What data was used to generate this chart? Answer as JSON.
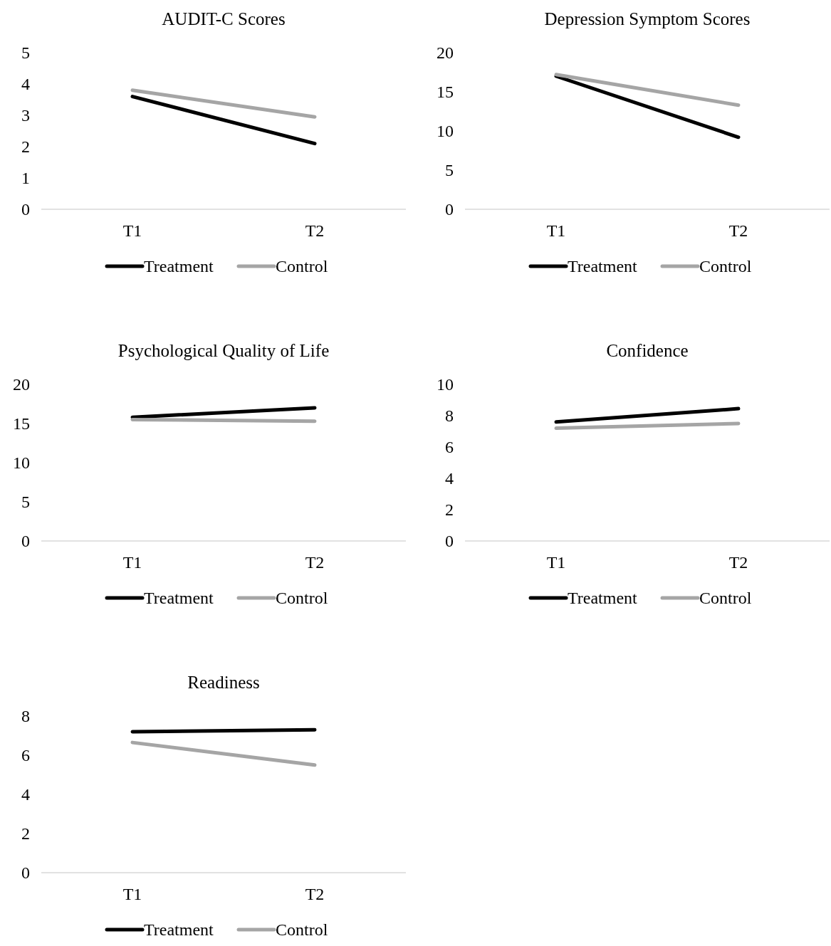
{
  "chart_data": [
    {
      "type": "line",
      "title": "AUDIT-C Scores",
      "categories": [
        "T1",
        "T2"
      ],
      "ylim": [
        0,
        5
      ],
      "yticks": [
        0,
        1,
        2,
        3,
        4,
        5
      ],
      "legend": "bottom",
      "series": [
        {
          "name": "Treatment",
          "color": "#000000",
          "values": [
            3.6,
            2.1
          ]
        },
        {
          "name": "Control",
          "color": "#a5a5a5",
          "values": [
            3.8,
            2.95
          ]
        }
      ]
    },
    {
      "type": "line",
      "title": "Depression Symptom Scores",
      "categories": [
        "T1",
        "T2"
      ],
      "ylim": [
        0,
        20
      ],
      "yticks": [
        0,
        5,
        10,
        15,
        20
      ],
      "legend": "bottom",
      "series": [
        {
          "name": "Treatment",
          "color": "#000000",
          "values": [
            17,
            9.2
          ]
        },
        {
          "name": "Control",
          "color": "#a5a5a5",
          "values": [
            17.2,
            13.3
          ]
        }
      ]
    },
    {
      "type": "line",
      "title": "Psychological Quality of Life",
      "categories": [
        "T1",
        "T2"
      ],
      "ylim": [
        0,
        20
      ],
      "yticks": [
        0,
        5,
        10,
        15,
        20
      ],
      "legend": "bottom",
      "series": [
        {
          "name": "Treatment",
          "color": "#000000",
          "values": [
            15.8,
            17
          ]
        },
        {
          "name": "Control",
          "color": "#a5a5a5",
          "values": [
            15.5,
            15.3
          ]
        }
      ]
    },
    {
      "type": "line",
      "title": "Confidence",
      "categories": [
        "T1",
        "T2"
      ],
      "ylim": [
        0,
        10
      ],
      "yticks": [
        0,
        2,
        4,
        6,
        8,
        10
      ],
      "legend": "bottom",
      "series": [
        {
          "name": "Treatment",
          "color": "#000000",
          "values": [
            7.6,
            8.45
          ]
        },
        {
          "name": "Control",
          "color": "#a5a5a5",
          "values": [
            7.2,
            7.5
          ]
        }
      ]
    },
    {
      "type": "line",
      "title": "Readiness",
      "categories": [
        "T1",
        "T2"
      ],
      "ylim": [
        0,
        8
      ],
      "yticks": [
        0,
        2,
        4,
        6,
        8
      ],
      "legend": "bottom",
      "series": [
        {
          "name": "Treatment",
          "color": "#000000",
          "values": [
            7.2,
            7.3
          ]
        },
        {
          "name": "Control",
          "color": "#a5a5a5",
          "values": [
            6.65,
            5.5
          ]
        }
      ]
    }
  ]
}
